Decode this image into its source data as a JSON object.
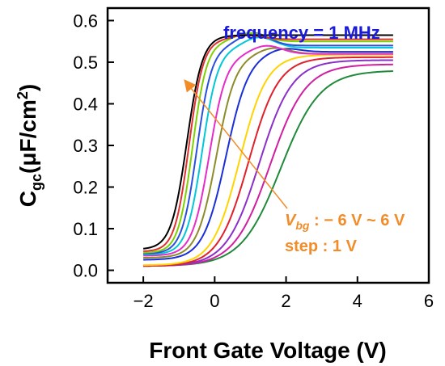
{
  "chart_data": {
    "type": "line",
    "xlabel": "Front Gate Voltage (V)",
    "ylabel_main": "C",
    "ylabel_sub": "gc",
    "ylabel_rest": "(μF/cm",
    "ylabel_sup": "2",
    "ylabel_close": ")",
    "xlim": [
      -3,
      6
    ],
    "ylim": [
      -0.03,
      0.63
    ],
    "xticks": [
      -2,
      0,
      2,
      4,
      6
    ],
    "xtick_labels": [
      "−2",
      "0",
      "2",
      "4",
      "6"
    ],
    "yticks": [
      0.0,
      0.1,
      0.2,
      0.3,
      0.4,
      0.5,
      0.6
    ],
    "ytick_labels": [
      "0.0",
      "0.1",
      "0.2",
      "0.3",
      "0.4",
      "0.5",
      "0.6"
    ],
    "x_range_data": [
      -2,
      5
    ],
    "legend_position": "none",
    "annotations": {
      "frequency": "frequency = 1 MHz",
      "vbg_prefix": "V",
      "vbg_sub": "bg",
      "vbg_suffix": " : − 6 V ~ 6 V",
      "step": "step : 1 V",
      "frequency_color": "#1a1adb",
      "vbg_color": "#f28c28",
      "arrow_color": "#f28c28"
    },
    "series": [
      {
        "color": "#1f8a3a",
        "vmid": 1.85,
        "w": 0.55,
        "high": 0.48,
        "low": 0.01,
        "bump": 0
      },
      {
        "color": "#d01fa0",
        "vmid": 1.55,
        "w": 0.5,
        "high": 0.495,
        "low": 0.01,
        "bump": 0
      },
      {
        "color": "#8b2fc9",
        "vmid": 1.25,
        "w": 0.46,
        "high": 0.505,
        "low": 0.01,
        "bump": 0
      },
      {
        "color": "#e0202a",
        "vmid": 0.95,
        "w": 0.42,
        "high": 0.512,
        "low": 0.01,
        "bump": 0
      },
      {
        "color": "#ffd400",
        "vmid": 0.7,
        "w": 0.38,
        "high": 0.518,
        "low": 0.012,
        "bump": 0
      },
      {
        "color": "#1a2fd8",
        "vmid": 0.32,
        "w": 0.32,
        "high": 0.525,
        "low": 0.025,
        "bump": 0.01
      },
      {
        "color": "#8c8c2a",
        "vmid": 0.05,
        "w": 0.27,
        "high": 0.52,
        "low": 0.03,
        "bump": 0.015
      },
      {
        "color": "#e62cc9",
        "vmid": -0.15,
        "w": 0.24,
        "high": 0.52,
        "low": 0.035,
        "bump": 0.02
      },
      {
        "color": "#00c8d8",
        "vmid": -0.35,
        "w": 0.22,
        "high": 0.535,
        "low": 0.038,
        "bump": 0.025
      },
      {
        "color": "#2a4fe0",
        "vmid": -0.5,
        "w": 0.21,
        "high": 0.54,
        "low": 0.04,
        "bump": 0.03
      },
      {
        "color": "#7fd000",
        "vmid": -0.62,
        "w": 0.2,
        "high": 0.55,
        "low": 0.042,
        "bump": 0.02
      },
      {
        "color": "#e03030",
        "vmid": -0.72,
        "w": 0.2,
        "high": 0.555,
        "low": 0.045,
        "bump": 0.01
      },
      {
        "color": "#000000",
        "vmid": -0.78,
        "w": 0.22,
        "high": 0.565,
        "low": 0.05,
        "bump": 0
      }
    ]
  }
}
